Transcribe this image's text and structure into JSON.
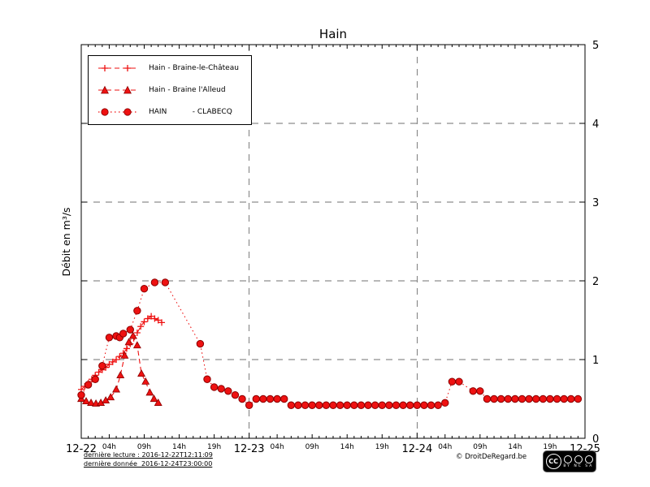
{
  "chart_data": {
    "type": "line",
    "title": "Hain",
    "ylabel": "Débit en m³/s",
    "xlim": [
      0,
      72
    ],
    "ylim": [
      0,
      5
    ],
    "grid": "dashed",
    "legend_position": "top-left",
    "accent_color": "#ee1111",
    "y_ticks": [
      0,
      1,
      2,
      3,
      4,
      5
    ],
    "x_major_ticks": [
      {
        "x": 0,
        "label": "12-22"
      },
      {
        "x": 24,
        "label": "12-23"
      },
      {
        "x": 48,
        "label": "12-24"
      },
      {
        "x": 72,
        "label": "12-25"
      }
    ],
    "x_minor_ticks": [
      {
        "x": 4,
        "label": "04h"
      },
      {
        "x": 9,
        "label": "09h"
      },
      {
        "x": 14,
        "label": "14h"
      },
      {
        "x": 19,
        "label": "19h"
      },
      {
        "x": 28,
        "label": "04h"
      },
      {
        "x": 33,
        "label": "09h"
      },
      {
        "x": 38,
        "label": "14h"
      },
      {
        "x": 43,
        "label": "19h"
      },
      {
        "x": 52,
        "label": "04h"
      },
      {
        "x": 57,
        "label": "09h"
      },
      {
        "x": 62,
        "label": "14h"
      },
      {
        "x": 67,
        "label": "19h"
      }
    ],
    "grid_x": [
      24,
      48
    ],
    "grid_y": [
      1,
      2,
      3,
      4
    ],
    "series": [
      {
        "name": "Hain - Braine-le-Château",
        "marker": "plus",
        "line": "dashed",
        "color": "#ee1111",
        "points": [
          [
            0,
            0.62
          ],
          [
            0.5,
            0.66
          ],
          [
            1,
            0.7
          ],
          [
            1.5,
            0.75
          ],
          [
            2,
            0.8
          ],
          [
            2.5,
            0.84
          ],
          [
            3,
            0.87
          ],
          [
            3.5,
            0.9
          ],
          [
            4,
            0.94
          ],
          [
            4.5,
            0.97
          ],
          [
            5,
            1.0
          ],
          [
            5.5,
            1.04
          ],
          [
            6,
            1.08
          ],
          [
            6.5,
            1.14
          ],
          [
            7,
            1.2
          ],
          [
            7.5,
            1.27
          ],
          [
            8,
            1.34
          ],
          [
            8.5,
            1.42
          ],
          [
            9,
            1.48
          ],
          [
            9.5,
            1.52
          ],
          [
            10,
            1.55
          ],
          [
            10.5,
            1.52
          ],
          [
            11,
            1.5
          ],
          [
            11.5,
            1.47
          ]
        ]
      },
      {
        "name": "Hain - Braine l'Alleud",
        "marker": "triangle",
        "line": "dashed",
        "color": "#ee1111",
        "points": [
          [
            0,
            0.5
          ],
          [
            0.7,
            0.47
          ],
          [
            1.4,
            0.45
          ],
          [
            2.1,
            0.44
          ],
          [
            2.8,
            0.45
          ],
          [
            3.5,
            0.48
          ],
          [
            4.2,
            0.52
          ],
          [
            5,
            0.62
          ],
          [
            5.6,
            0.8
          ],
          [
            6.2,
            1.05
          ],
          [
            6.8,
            1.22
          ],
          [
            7.4,
            1.3
          ],
          [
            8,
            1.18
          ],
          [
            8.6,
            0.82
          ],
          [
            9.2,
            0.72
          ],
          [
            9.8,
            0.58
          ],
          [
            10.4,
            0.5
          ],
          [
            11,
            0.45
          ]
        ]
      },
      {
        "name": "HAIN           - CLABECQ",
        "marker": "circle",
        "line": "dotted",
        "color": "#ee1111",
        "points": [
          [
            0,
            0.55
          ],
          [
            1,
            0.68
          ],
          [
            2,
            0.75
          ],
          [
            3,
            0.92
          ],
          [
            4,
            1.28
          ],
          [
            5,
            1.3
          ],
          [
            5.5,
            1.28
          ],
          [
            6,
            1.33
          ],
          [
            7,
            1.38
          ],
          [
            8,
            1.62
          ],
          [
            9,
            1.9
          ],
          [
            10.5,
            1.98
          ],
          [
            12,
            1.98
          ],
          [
            17,
            1.2
          ],
          [
            18,
            0.75
          ],
          [
            19,
            0.65
          ],
          [
            20,
            0.63
          ],
          [
            21,
            0.6
          ],
          [
            22,
            0.55
          ],
          [
            23,
            0.5
          ],
          [
            24,
            0.42
          ],
          [
            25,
            0.5
          ],
          [
            26,
            0.5
          ],
          [
            27,
            0.5
          ],
          [
            28,
            0.5
          ],
          [
            29,
            0.5
          ],
          [
            30,
            0.42
          ],
          [
            31,
            0.42
          ],
          [
            32,
            0.42
          ],
          [
            33,
            0.42
          ],
          [
            34,
            0.42
          ],
          [
            35,
            0.42
          ],
          [
            36,
            0.42
          ],
          [
            37,
            0.42
          ],
          [
            38,
            0.42
          ],
          [
            39,
            0.42
          ],
          [
            40,
            0.42
          ],
          [
            41,
            0.42
          ],
          [
            42,
            0.42
          ],
          [
            43,
            0.42
          ],
          [
            44,
            0.42
          ],
          [
            45,
            0.42
          ],
          [
            46,
            0.42
          ],
          [
            47,
            0.42
          ],
          [
            48,
            0.42
          ],
          [
            49,
            0.42
          ],
          [
            50,
            0.42
          ],
          [
            51,
            0.42
          ],
          [
            52,
            0.45
          ],
          [
            53,
            0.72
          ],
          [
            54,
            0.72
          ],
          [
            56,
            0.6
          ],
          [
            57,
            0.6
          ],
          [
            58,
            0.5
          ],
          [
            59,
            0.5
          ],
          [
            60,
            0.5
          ],
          [
            61,
            0.5
          ],
          [
            62,
            0.5
          ],
          [
            63,
            0.5
          ],
          [
            64,
            0.5
          ],
          [
            65,
            0.5
          ],
          [
            66,
            0.5
          ],
          [
            67,
            0.5
          ],
          [
            68,
            0.5
          ],
          [
            69,
            0.5
          ],
          [
            70,
            0.5
          ],
          [
            71,
            0.5
          ]
        ]
      }
    ]
  },
  "footer": {
    "last_read": "dernière lecture : 2016-12-22T12:11:09",
    "last_data": "dernière donnée  2016-12-24T23:00:00",
    "copyright": "© DroitDeRegard.be",
    "cc_logo": "CC",
    "cc_labels": "BY NC SA"
  }
}
